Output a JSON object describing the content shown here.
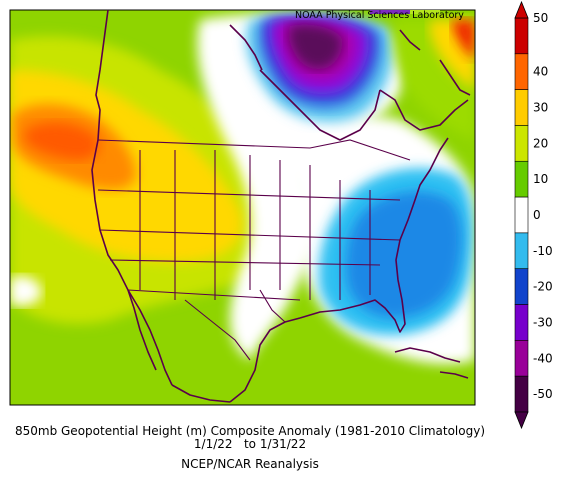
{
  "brand": "NOAA Physical Sciences Laboratory",
  "caption": {
    "line1": "850mb Geopotential Height (m) Composite Anomaly (1981-2010 Climatology)",
    "line2": "1/1/22   to 1/31/22",
    "line3": "NCEP/NCAR Reanalysis"
  },
  "colorbar": {
    "levels": [
      {
        "label": "50",
        "color": "#cc0000"
      },
      {
        "label": "40",
        "color": "#ff6600"
      },
      {
        "label": "30",
        "color": "#ffcc00"
      },
      {
        "label": "20",
        "color": "#cce600"
      },
      {
        "label": "10",
        "color": "#66cc00"
      },
      {
        "label": "0",
        "color": "#ffffff"
      },
      {
        "label": "-10",
        "color": "#33bbee"
      },
      {
        "label": "-20",
        "color": "#1144cc"
      },
      {
        "label": "-30",
        "color": "#7700cc"
      },
      {
        "label": "-40",
        "color": "#990099"
      },
      {
        "label": "-50",
        "color": "#440044"
      }
    ]
  },
  "anomaly_regions": [
    {
      "name": "west-coast-high",
      "value": 40
    },
    {
      "name": "hudson-bay-low",
      "value": -50
    },
    {
      "name": "southeast-low",
      "value": -15
    },
    {
      "name": "nw-atlantic-high",
      "value": 50
    }
  ]
}
